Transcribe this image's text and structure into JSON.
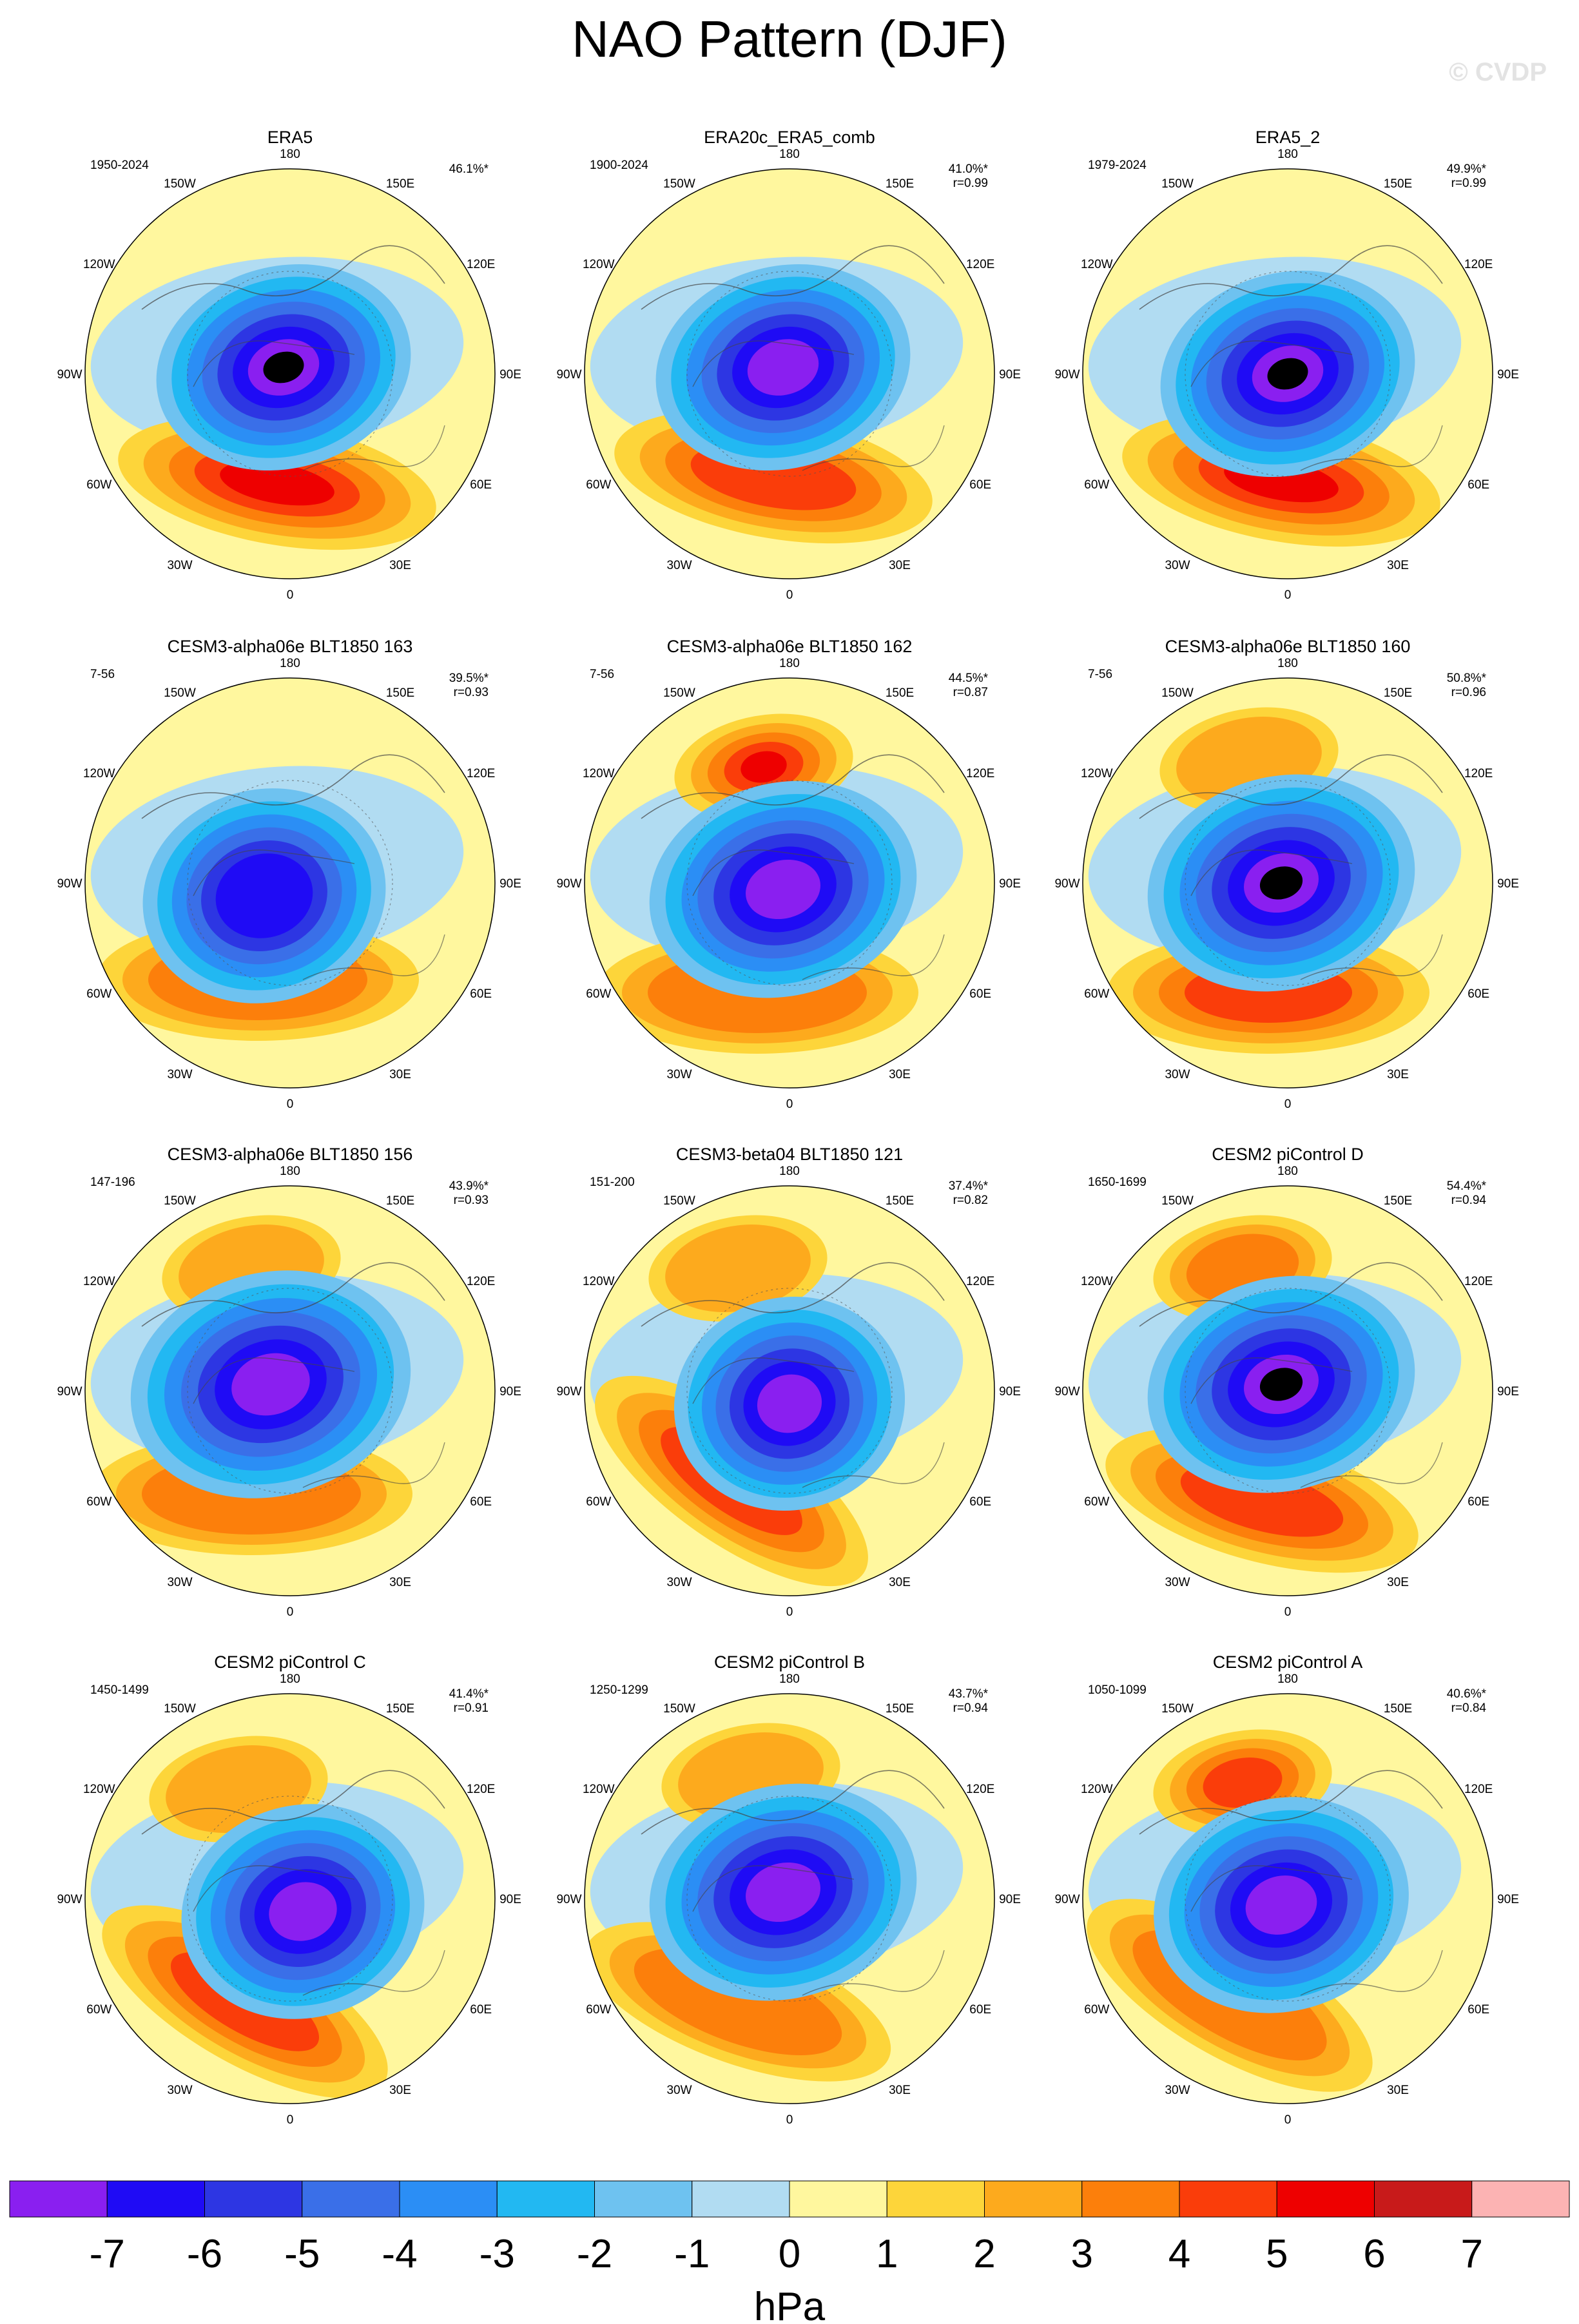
{
  "chart_data": {
    "type": "contour-map",
    "title": "NAO Pattern (DJF)",
    "credit": "© CVDP",
    "projection": "north-polar-stereographic",
    "longitude_labels": [
      "180",
      "150W",
      "120W",
      "90W",
      "60W",
      "30W",
      "0",
      "30E",
      "60E",
      "90E",
      "120E",
      "150E"
    ],
    "colorbar": {
      "units": "hPa",
      "levels": [
        "-7",
        "-6",
        "-5",
        "-4",
        "-3",
        "-2",
        "-1",
        "0",
        "1",
        "2",
        "3",
        "4",
        "5",
        "6",
        "7"
      ],
      "colors": [
        "#8a1ff0",
        "#1f0bf5",
        "#2d36e3",
        "#3a6fe8",
        "#2b8ef5",
        "#22b8f2",
        "#6ec2f0",
        "#b1dcf2",
        "#fff79e",
        "#fdd53a",
        "#fdaa1d",
        "#fc7f0b",
        "#fa3d0a",
        "#ee0000",
        "#c81a1a",
        "#fcb3b3"
      ]
    },
    "panels": [
      {
        "name": "ERA5",
        "period": "1950-2024",
        "pct": "46.1%*",
        "r": ""
      },
      {
        "name": "ERA20c_ERA5_comb",
        "period": "1900-2024",
        "pct": "41.0%*",
        "r": "r=0.99"
      },
      {
        "name": "ERA5_2",
        "period": "1979-2024",
        "pct": "49.9%*",
        "r": "r=0.99"
      },
      {
        "name": "CESM3-alpha06e BLT1850 163",
        "period": "7-56",
        "pct": "39.5%*",
        "r": "r=0.93"
      },
      {
        "name": "CESM3-alpha06e BLT1850 162",
        "period": "7-56",
        "pct": "44.5%*",
        "r": "r=0.87"
      },
      {
        "name": "CESM3-alpha06e BLT1850 160",
        "period": "7-56",
        "pct": "50.8%*",
        "r": "r=0.96"
      },
      {
        "name": "CESM3-alpha06e BLT1850 156",
        "period": "147-196",
        "pct": "43.9%*",
        "r": "r=0.93"
      },
      {
        "name": "CESM3-beta04 BLT1850 121",
        "period": "151-200",
        "pct": "37.4%*",
        "r": "r=0.82"
      },
      {
        "name": "CESM2 piControl D",
        "period": "1650-1699",
        "pct": "54.4%*",
        "r": "r=0.94"
      },
      {
        "name": "CESM2 piControl C",
        "period": "1450-1499",
        "pct": "41.4%*",
        "r": "r=0.91"
      },
      {
        "name": "CESM2 piControl B",
        "period": "1250-1299",
        "pct": "43.7%*",
        "r": "r=0.94"
      },
      {
        "name": "CESM2 piControl A",
        "period": "1050-1099",
        "pct": "40.6%*",
        "r": "r=0.84"
      }
    ]
  }
}
